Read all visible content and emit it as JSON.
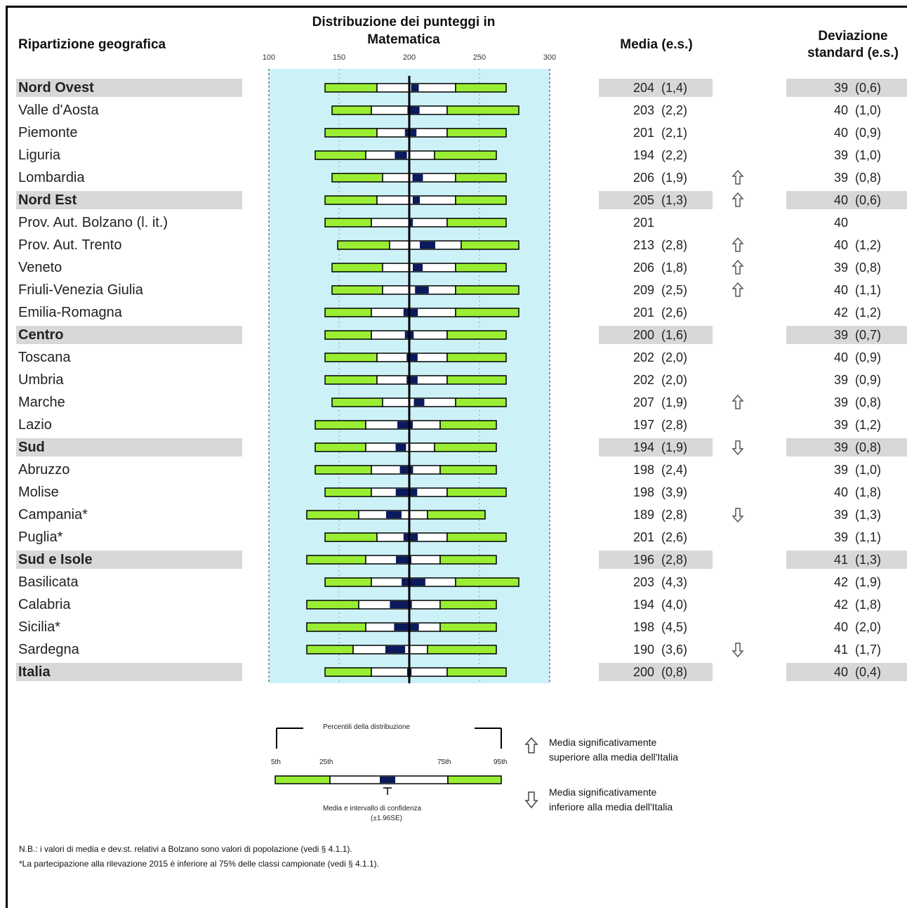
{
  "headers": {
    "region": "Ripartizione geografica",
    "distribution_line1": "Distribuzione dei punteggi in",
    "distribution_line2": "Matematica",
    "mean": "Media (e.s.)",
    "sd_line1": "Deviazione",
    "sd_line2": "standard (e.s.)"
  },
  "chart_data": {
    "type": "bar",
    "title": "Distribuzione dei punteggi in Matematica",
    "xlim": [
      100,
      300
    ],
    "ticks": [
      "100",
      "150",
      "200",
      "250",
      "300"
    ],
    "reference_line": 200,
    "colors": {
      "tails": "#99ee33",
      "iqr": "#ffffff",
      "ci": "#0a1a5c",
      "background": "#ccf2f8",
      "header_rows": "#d8d8d8"
    },
    "rows": [
      {
        "name": "Nord Ovest",
        "bold": true,
        "p5": 140,
        "p25": 177,
        "p75": 233,
        "p95": 269,
        "mean": "204",
        "mean_se": "(1,4)",
        "sd": "39",
        "sd_se": "(0,6)",
        "arrow": ""
      },
      {
        "name": "Valle d'Aosta",
        "bold": false,
        "p5": 145,
        "p25": 173,
        "p75": 227,
        "p95": 278,
        "mean": "203",
        "mean_se": "(2,2)",
        "sd": "40",
        "sd_se": "(1,0)",
        "arrow": ""
      },
      {
        "name": "Piemonte",
        "bold": false,
        "p5": 140,
        "p25": 177,
        "p75": 227,
        "p95": 269,
        "mean": "201",
        "mean_se": "(2,1)",
        "sd": "40",
        "sd_se": "(0,9)",
        "arrow": ""
      },
      {
        "name": "Liguria",
        "bold": false,
        "p5": 133,
        "p25": 169,
        "p75": 218,
        "p95": 262,
        "mean": "194",
        "mean_se": "(2,2)",
        "sd": "39",
        "sd_se": "(1,0)",
        "arrow": ""
      },
      {
        "name": "Lombardia",
        "bold": false,
        "p5": 145,
        "p25": 181,
        "p75": 233,
        "p95": 269,
        "mean": "206",
        "mean_se": "(1,9)",
        "sd": "39",
        "sd_se": "(0,8)",
        "arrow": "up"
      },
      {
        "name": "Nord Est",
        "bold": true,
        "p5": 140,
        "p25": 177,
        "p75": 233,
        "p95": 269,
        "mean": "205",
        "mean_se": "(1,3)",
        "sd": "40",
        "sd_se": "(0,6)",
        "arrow": "up"
      },
      {
        "name": "Prov. Aut. Bolzano (l. it.)",
        "bold": false,
        "p5": 140,
        "p25": 173,
        "p75": 227,
        "p95": 269,
        "mean": "201",
        "mean_se": "",
        "sd": "40",
        "sd_se": "",
        "arrow": ""
      },
      {
        "name": "Prov. Aut. Trento",
        "bold": false,
        "p5": 149,
        "p25": 186,
        "p75": 237,
        "p95": 278,
        "mean": "213",
        "mean_se": "(2,8)",
        "sd": "40",
        "sd_se": "(1,2)",
        "arrow": "up"
      },
      {
        "name": "Veneto",
        "bold": false,
        "p5": 145,
        "p25": 181,
        "p75": 233,
        "p95": 269,
        "mean": "206",
        "mean_se": "(1,8)",
        "sd": "39",
        "sd_se": "(0,8)",
        "arrow": "up"
      },
      {
        "name": "Friuli-Venezia Giulia",
        "bold": false,
        "p5": 145,
        "p25": 181,
        "p75": 233,
        "p95": 278,
        "mean": "209",
        "mean_se": "(2,5)",
        "sd": "40",
        "sd_se": "(1,1)",
        "arrow": "up"
      },
      {
        "name": "Emilia-Romagna",
        "bold": false,
        "p5": 140,
        "p25": 173,
        "p75": 233,
        "p95": 278,
        "mean": "201",
        "mean_se": "(2,6)",
        "sd": "42",
        "sd_se": "(1,2)",
        "arrow": ""
      },
      {
        "name": "Centro",
        "bold": true,
        "p5": 140,
        "p25": 173,
        "p75": 227,
        "p95": 269,
        "mean": "200",
        "mean_se": "(1,6)",
        "sd": "39",
        "sd_se": "(0,7)",
        "arrow": ""
      },
      {
        "name": "Toscana",
        "bold": false,
        "p5": 140,
        "p25": 177,
        "p75": 227,
        "p95": 269,
        "mean": "202",
        "mean_se": "(2,0)",
        "sd": "40",
        "sd_se": "(0,9)",
        "arrow": ""
      },
      {
        "name": "Umbria",
        "bold": false,
        "p5": 140,
        "p25": 177,
        "p75": 227,
        "p95": 269,
        "mean": "202",
        "mean_se": "(2,0)",
        "sd": "39",
        "sd_se": "(0,9)",
        "arrow": ""
      },
      {
        "name": "Marche",
        "bold": false,
        "p5": 145,
        "p25": 181,
        "p75": 233,
        "p95": 269,
        "mean": "207",
        "mean_se": "(1,9)",
        "sd": "39",
        "sd_se": "(0,8)",
        "arrow": "up"
      },
      {
        "name": "Lazio",
        "bold": false,
        "p5": 133,
        "p25": 169,
        "p75": 222,
        "p95": 262,
        "mean": "197",
        "mean_se": "(2,8)",
        "sd": "39",
        "sd_se": "(1,2)",
        "arrow": ""
      },
      {
        "name": "Sud",
        "bold": true,
        "p5": 133,
        "p25": 169,
        "p75": 218,
        "p95": 262,
        "mean": "194",
        "mean_se": "(1,9)",
        "sd": "39",
        "sd_se": "(0,8)",
        "arrow": "down"
      },
      {
        "name": "Abruzzo",
        "bold": false,
        "p5": 133,
        "p25": 173,
        "p75": 222,
        "p95": 262,
        "mean": "198",
        "mean_se": "(2,4)",
        "sd": "39",
        "sd_se": "(1,0)",
        "arrow": ""
      },
      {
        "name": "Molise",
        "bold": false,
        "p5": 140,
        "p25": 173,
        "p75": 227,
        "p95": 269,
        "mean": "198",
        "mean_se": "(3,9)",
        "sd": "40",
        "sd_se": "(1,8)",
        "arrow": ""
      },
      {
        "name": "Campania*",
        "bold": false,
        "p5": 127,
        "p25": 164,
        "p75": 213,
        "p95": 254,
        "mean": "189",
        "mean_se": "(2,8)",
        "sd": "39",
        "sd_se": "(1,3)",
        "arrow": "down"
      },
      {
        "name": "Puglia*",
        "bold": false,
        "p5": 140,
        "p25": 177,
        "p75": 227,
        "p95": 269,
        "mean": "201",
        "mean_se": "(2,6)",
        "sd": "39",
        "sd_se": "(1,1)",
        "arrow": ""
      },
      {
        "name": "Sud e Isole",
        "bold": true,
        "p5": 127,
        "p25": 169,
        "p75": 222,
        "p95": 262,
        "mean": "196",
        "mean_se": "(2,8)",
        "sd": "41",
        "sd_se": "(1,3)",
        "arrow": ""
      },
      {
        "name": "Basilicata",
        "bold": false,
        "p5": 140,
        "p25": 173,
        "p75": 233,
        "p95": 278,
        "mean": "203",
        "mean_se": "(4,3)",
        "sd": "42",
        "sd_se": "(1,9)",
        "arrow": ""
      },
      {
        "name": "Calabria",
        "bold": false,
        "p5": 127,
        "p25": 164,
        "p75": 222,
        "p95": 262,
        "mean": "194",
        "mean_se": "(4,0)",
        "sd": "42",
        "sd_se": "(1,8)",
        "arrow": ""
      },
      {
        "name": "Sicilia*",
        "bold": false,
        "p5": 127,
        "p25": 169,
        "p75": 222,
        "p95": 262,
        "mean": "198",
        "mean_se": "(4,5)",
        "sd": "40",
        "sd_se": "(2,0)",
        "arrow": ""
      },
      {
        "name": "Sardegna",
        "bold": false,
        "p5": 127,
        "p25": 160,
        "p75": 213,
        "p95": 262,
        "mean": "190",
        "mean_se": "(3,6)",
        "sd": "41",
        "sd_se": "(1,7)",
        "arrow": "down"
      },
      {
        "name": "Italia",
        "bold": true,
        "p5": 140,
        "p25": 173,
        "p75": 227,
        "p95": 269,
        "mean": "200",
        "mean_se": "(0,8)",
        "sd": "40",
        "sd_se": "(0,4)",
        "arrow": ""
      }
    ]
  },
  "legend": {
    "percentiles_title": "Percentili della distribuzione",
    "p5": "5th",
    "p25": "25th",
    "p75": "75th",
    "p95": "95th",
    "ci_line1": "Media e intervallo di confidenza",
    "ci_line2": "(±1.96SE)",
    "up_line1": "Media significativamente",
    "up_line2": "superiore alla media dell'Italia",
    "down_line1": "Media significativamente",
    "down_line2": "inferiore alla media dell'Italia"
  },
  "notes": {
    "nb": "N.B.: i valori di media e dev.st. relativi a Bolzano sono valori di popolazione (vedi § 4.1.1).",
    "star": "*La partecipazione alla rilevazione 2015 è inferiore al 75% delle classi campionate (vedi § 4.1.1)."
  }
}
